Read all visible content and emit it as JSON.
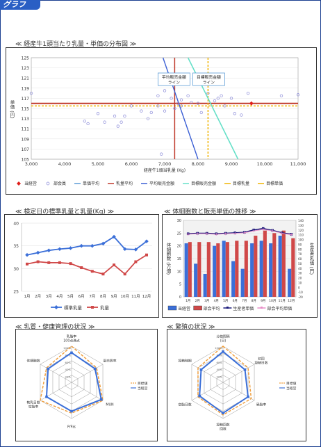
{
  "page": {
    "tab_label": "グラフ",
    "section1_title": "≪ 経産牛1頭当たり乳量・単価の分布図 ≫",
    "section2_title": "≪ 検定日の標準乳量と乳量(Kg) ≫",
    "section3_title": "≪ 体細胞数と販売単価の推移 ≫",
    "section4_title": "≪ 乳質・健康管理の状況 ≫",
    "section5_title": "≪ 繁殖の状況 ≫"
  },
  "chart_data": [
    {
      "type": "scatter",
      "xlabel": "経産牛1頭当乳量 (Kg)",
      "ylabel": "単価 (円)",
      "xlim": [
        3000,
        11000
      ],
      "ylim": [
        105,
        125
      ],
      "xticks": [
        "3,000",
        "4,000",
        "5,000",
        "6,000",
        "7,000",
        "8,000",
        "9,000",
        "10,000",
        "11,000"
      ],
      "yticks": [
        "105",
        "107",
        "109",
        "111",
        "113",
        "115",
        "117",
        "119",
        "121",
        "123",
        "125"
      ],
      "annotations": [
        "平均販売金額 ライン",
        "目標販売金額 ライン"
      ],
      "legend": [
        "当経営",
        "部会員",
        "単価平均",
        "乳量平均",
        "平均販売金額",
        "目標販売金額",
        "目標乳量",
        "目標単価"
      ],
      "colors": {
        "own": "#e0201c",
        "members": "#8a8ad8",
        "avg_price": "#5b9bd5",
        "avg_milk": "#c0392b",
        "avg_sales": "#3b5fd4",
        "target_sales": "#66e0c8",
        "target_milk": "#f0b400",
        "target_price": "#f0b400"
      },
      "own_point": [
        9600,
        116
      ],
      "members": [
        [
          3000,
          118
        ],
        [
          4600,
          112.5
        ],
        [
          4700,
          112
        ],
        [
          5000,
          114
        ],
        [
          5200,
          112.3
        ],
        [
          5500,
          113.5
        ],
        [
          5600,
          111.5
        ],
        [
          5700,
          112.3
        ],
        [
          5800,
          113.5
        ],
        [
          6000,
          115.5
        ],
        [
          6300,
          114.5
        ],
        [
          6500,
          113
        ],
        [
          6600,
          114.2
        ],
        [
          6800,
          115.5
        ],
        [
          6800,
          117.5
        ],
        [
          6900,
          106
        ],
        [
          7000,
          114.5
        ],
        [
          7000,
          118.5
        ],
        [
          7200,
          117
        ],
        [
          7300,
          115
        ],
        [
          7400,
          116
        ],
        [
          7500,
          115.5
        ],
        [
          7500,
          116.7
        ],
        [
          7700,
          117.5
        ],
        [
          7800,
          116.2
        ],
        [
          8000,
          116
        ],
        [
          8100,
          114.2
        ],
        [
          8300,
          118
        ],
        [
          8500,
          116.5
        ],
        [
          8600,
          117
        ],
        [
          8700,
          117.5
        ],
        [
          8800,
          115.5
        ],
        [
          9000,
          117
        ],
        [
          9100,
          114
        ],
        [
          9300,
          113.7
        ],
        [
          9500,
          118
        ],
        [
          10500,
          117.5
        ],
        [
          11000,
          117.7
        ]
      ],
      "avg_price": 116,
      "avg_milk": 7300,
      "target_milk": 8300,
      "target_price": 115.5
    },
    {
      "type": "line",
      "categories": [
        "1月",
        "2月",
        "3月",
        "4月",
        "5月",
        "6月",
        "7月",
        "8月",
        "9月",
        "10月",
        "11月",
        "12月"
      ],
      "ylim": [
        25,
        40
      ],
      "yticks": [
        "25",
        "30",
        "35",
        "40"
      ],
      "series": [
        {
          "name": "標準乳量",
          "color": "#3b6fd8",
          "values": [
            33,
            33.5,
            34,
            34.3,
            34.5,
            35,
            35,
            35.5,
            37,
            34.3,
            34.2,
            36
          ]
        },
        {
          "name": "乳量",
          "color": "#d04848",
          "values": [
            31,
            31.5,
            31.3,
            31.3,
            31.1,
            30.2,
            29.4,
            28.8,
            30.8,
            28.8,
            31.5,
            33
          ]
        }
      ]
    },
    {
      "type": "bar",
      "categories": [
        "1月",
        "2月",
        "3月",
        "4月",
        "5月",
        "6月",
        "7月",
        "8月",
        "9月",
        "10月",
        "11月",
        "12月"
      ],
      "ylabel": "体細胞数 (万個)",
      "y2label": "生産者乳価 (円)",
      "ylim": [
        0,
        30
      ],
      "y2lim": [
        -20,
        140
      ],
      "yticks": [
        "0",
        "5",
        "10",
        "15",
        "20",
        "25",
        "30"
      ],
      "y2ticks": [
        "-20",
        "-10",
        "0",
        "10",
        "20",
        "30",
        "40",
        "50",
        "60",
        "70",
        "80",
        "90",
        "100",
        "110",
        "120",
        "130",
        "140"
      ],
      "series": [
        {
          "name": "当経営",
          "color": "#3b6fd8",
          "values": [
            21,
            13,
            9,
            20,
            22,
            14,
            11,
            21,
            22,
            21,
            24,
            11
          ]
        },
        {
          "name": "部会平均",
          "color": "#d04848",
          "values": [
            21.5,
            21.5,
            21.5,
            21,
            21.5,
            22,
            22,
            24,
            26,
            25,
            26,
            23
          ]
        },
        {
          "name": "生産者単価",
          "color": "#1a1a7a",
          "line": true,
          "values": [
            112,
            113,
            113,
            112,
            113,
            114,
            115,
            120,
            123,
            119,
            114,
            111
          ]
        },
        {
          "name": "部会平均単価",
          "color": "#e88fc8",
          "line": true,
          "values": [
            111,
            112,
            112,
            111,
            112,
            113,
            114,
            118,
            121,
            118,
            113,
            110
          ]
        }
      ]
    },
    {
      "type": "radar",
      "axes": [
        "乳脂率\n100点満点",
        "蛋白質率",
        "MUN",
        "P/F比",
        "乾乳日数\n空胎率",
        "体細胞数"
      ],
      "rings": [
        "20%",
        "40%",
        "60%",
        "80%",
        "100%"
      ],
      "series": [
        {
          "name": "目標値",
          "color": "#f0a040",
          "values": [
            100,
            80,
            100,
            85,
            100,
            80
          ]
        },
        {
          "name": "当経営",
          "color": "#3b6fd8",
          "values": [
            82,
            75,
            95,
            80,
            80,
            75
          ]
        }
      ]
    },
    {
      "type": "radar",
      "axes": [
        "分娩間隔\n(日)",
        "初回\n授精日数",
        "受胎率",
        "授精回数\n回数",
        "空胎日数",
        "授精時期"
      ],
      "rings": [
        "20%",
        "40%",
        "60%",
        "80%",
        "100%"
      ],
      "series": [
        {
          "name": "目標値",
          "color": "#f0a040",
          "values": [
            100,
            80,
            90,
            90,
            80,
            80
          ]
        },
        {
          "name": "当経営",
          "color": "#3b6fd8",
          "values": [
            85,
            70,
            80,
            85,
            75,
            70
          ]
        }
      ]
    }
  ]
}
